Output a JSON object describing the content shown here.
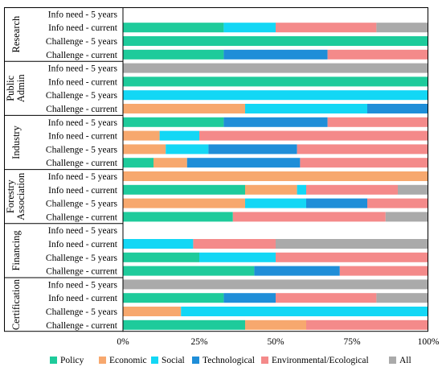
{
  "chart_data": {
    "type": "bar",
    "orientation": "horizontal",
    "stacked": true,
    "xlim": [
      0,
      100
    ],
    "x_ticks": [
      "0%",
      "25%",
      "50%",
      "75%",
      "100%"
    ],
    "legend_position": "bottom",
    "series_names": [
      "Policy",
      "Economic",
      "Social",
      "Technological",
      "Environmental/Ecological",
      "All"
    ],
    "colors": {
      "Policy": "#1ecb9b",
      "Economic": "#f7a86e",
      "Social": "#13d7f5",
      "Technological": "#1f8ed8",
      "Environmental/Ecological": "#f48a8a",
      "All": "#aaaaaa"
    },
    "groups": [
      {
        "label": "Research",
        "rows": [
          {
            "label": "Info need - 5 years",
            "values": [
              0,
              0,
              0,
              0,
              0,
              0
            ]
          },
          {
            "label": "Info need - current",
            "values": [
              33,
              0,
              17,
              0,
              33,
              17
            ]
          },
          {
            "label": "Challenge - 5 years",
            "values": [
              100,
              0,
              0,
              0,
              0,
              0
            ]
          },
          {
            "label": "Challenge - current",
            "values": [
              33,
              0,
              0,
              34,
              33,
              0
            ]
          }
        ]
      },
      {
        "label": "Public Admin",
        "rows": [
          {
            "label": "Info need - 5 years",
            "values": [
              0,
              0,
              0,
              0,
              0,
              100
            ]
          },
          {
            "label": "Info need - current",
            "values": [
              100,
              0,
              0,
              0,
              0,
              0
            ]
          },
          {
            "label": "Challenge - 5 years",
            "values": [
              0,
              0,
              100,
              0,
              0,
              0
            ]
          },
          {
            "label": "Challenge - current",
            "values": [
              0,
              40,
              40,
              20,
              0,
              0
            ]
          }
        ]
      },
      {
        "label": "Industry",
        "rows": [
          {
            "label": "Info need - 5 years",
            "values": [
              33,
              0,
              0,
              34,
              33,
              0
            ]
          },
          {
            "label": "Info need - current",
            "values": [
              0,
              12,
              13,
              0,
              75,
              0
            ]
          },
          {
            "label": "Challenge - 5 years",
            "values": [
              0,
              14,
              14,
              29,
              43,
              0
            ]
          },
          {
            "label": "Challenge - current",
            "values": [
              10,
              11,
              0,
              37,
              42,
              0
            ]
          }
        ]
      },
      {
        "label": "Forestry Association",
        "rows": [
          {
            "label": "Info need - 5 years",
            "values": [
              0,
              100,
              0,
              0,
              0,
              0
            ]
          },
          {
            "label": "Info need - current",
            "values": [
              40,
              17,
              3,
              0,
              30,
              10
            ]
          },
          {
            "label": "Challenge - 5 years",
            "values": [
              0,
              40,
              20,
              20,
              20,
              0
            ]
          },
          {
            "label": "Challenge - current",
            "values": [
              36,
              0,
              0,
              0,
              50,
              14
            ]
          }
        ]
      },
      {
        "label": "Financing",
        "rows": [
          {
            "label": "Info need - 5 years",
            "values": [
              0,
              0,
              0,
              0,
              0,
              0
            ]
          },
          {
            "label": "Info need - current",
            "values": [
              0,
              0,
              23,
              0,
              27,
              50
            ]
          },
          {
            "label": "Challenge - 5 years",
            "values": [
              25,
              0,
              25,
              0,
              50,
              0
            ]
          },
          {
            "label": "Challenge - current",
            "values": [
              43,
              0,
              0,
              28,
              29,
              0
            ]
          }
        ]
      },
      {
        "label": "Certification",
        "rows": [
          {
            "label": "Info need - 5 years",
            "values": [
              0,
              0,
              0,
              0,
              0,
              100
            ]
          },
          {
            "label": "Info need - current",
            "values": [
              33,
              0,
              0,
              17,
              33,
              17
            ]
          },
          {
            "label": "Challenge - 5 years",
            "values": [
              0,
              19,
              81,
              0,
              0,
              0
            ]
          },
          {
            "label": "Challenge - current",
            "values": [
              40,
              20,
              0,
              0,
              40,
              0
            ]
          }
        ]
      }
    ]
  }
}
